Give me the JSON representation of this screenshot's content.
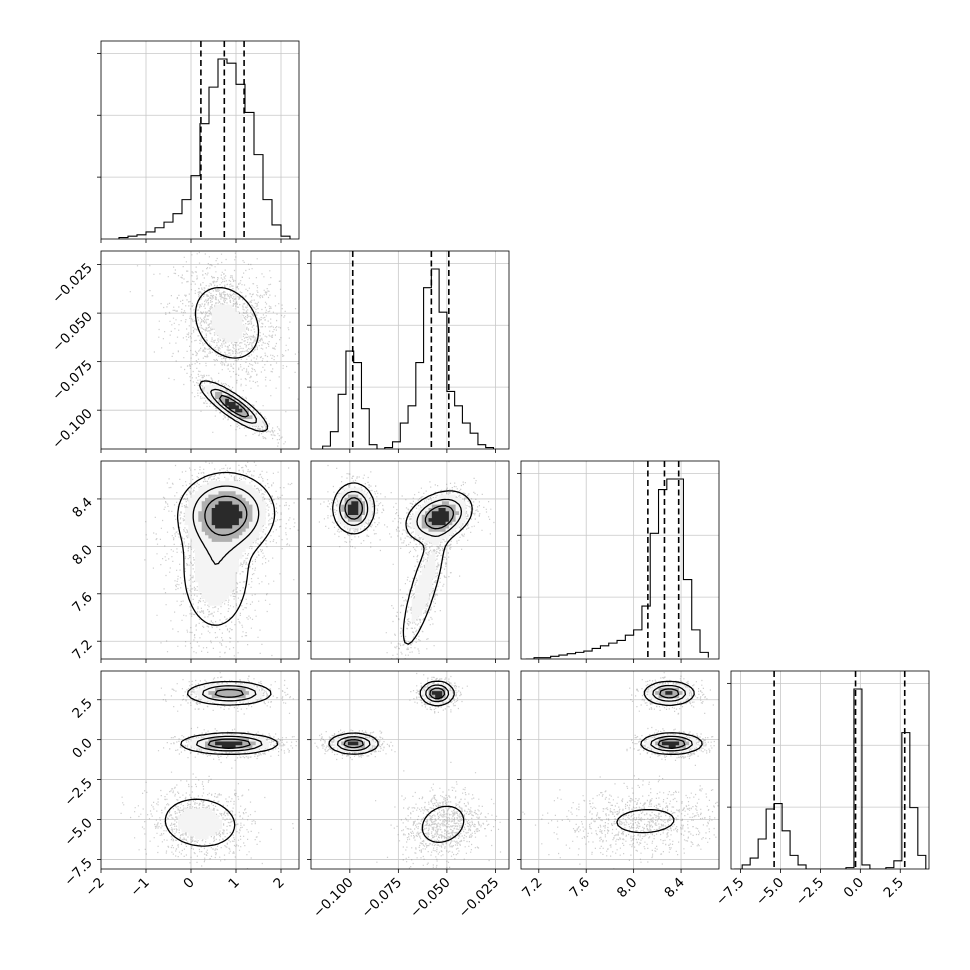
{
  "chart_data": {
    "type": "corner",
    "title": "",
    "n_params": 4,
    "grid": true,
    "params": [
      {
        "label": "",
        "range": [
          -2,
          2.4
        ],
        "ticks": [
          -2,
          -1,
          0,
          1,
          2
        ],
        "tick_labels": [
          "−2",
          "−1",
          "0",
          "1",
          "2"
        ]
      },
      {
        "label": "",
        "range": [
          -0.12,
          -0.018
        ],
        "ticks": [
          -0.1,
          -0.075,
          -0.05,
          -0.025
        ],
        "tick_labels": [
          "−0.100",
          "−0.075",
          "−0.050",
          "−0.025"
        ]
      },
      {
        "label": "",
        "range": [
          7.05,
          8.72
        ],
        "ticks": [
          7.2,
          7.6,
          8.0,
          8.4
        ],
        "tick_labels": [
          "7.2",
          "7.6",
          "8.0",
          "8.4"
        ]
      },
      {
        "label": "",
        "range": [
          -8.1,
          4.3
        ],
        "ticks": [
          -7.5,
          -5.0,
          -2.5,
          0.0,
          2.5
        ],
        "tick_labels": [
          "−7.5",
          "−5.0",
          "−2.5",
          "0.0",
          "2.5"
        ]
      }
    ],
    "histograms": [
      {
        "edges": [
          -1.6,
          -1.4,
          -1.2,
          -1.0,
          -0.8,
          -0.6,
          -0.4,
          -0.2,
          0.0,
          0.2,
          0.4,
          0.6,
          0.8,
          1.0,
          1.2,
          1.4,
          1.6,
          1.8,
          2.0,
          2.2
        ],
        "counts": [
          1,
          2,
          3,
          5,
          8,
          12,
          18,
          28,
          45,
          82,
          108,
          128,
          125,
          110,
          90,
          60,
          28,
          10,
          2
        ],
        "quantiles": [
          0.22,
          0.74,
          1.18
        ]
      },
      {
        "edges": [
          -0.114,
          -0.11,
          -0.106,
          -0.102,
          -0.098,
          -0.094,
          -0.09,
          -0.086,
          -0.082,
          -0.078,
          -0.074,
          -0.07,
          -0.066,
          -0.062,
          -0.058,
          -0.054,
          -0.05,
          -0.046,
          -0.042,
          -0.038,
          -0.034,
          -0.03,
          -0.026
        ],
        "counts": [
          2,
          12,
          38,
          68,
          60,
          28,
          3,
          0,
          1,
          5,
          18,
          30,
          60,
          112,
          125,
          95,
          40,
          30,
          18,
          11,
          3,
          1
        ],
        "quantiles": [
          -0.0985,
          -0.058,
          -0.049
        ]
      },
      {
        "edges": [
          7.09,
          7.16,
          7.23,
          7.3,
          7.37,
          7.44,
          7.51,
          7.58,
          7.65,
          7.72,
          7.79,
          7.86,
          7.93,
          8.0,
          8.07,
          8.14,
          8.21,
          8.28,
          8.35,
          8.42,
          8.49,
          8.56,
          8.63
        ],
        "counts": [
          0,
          1,
          1,
          2,
          3,
          4,
          5,
          6,
          8,
          10,
          12,
          14,
          18,
          22,
          40,
          95,
          128,
          136,
          136,
          60,
          22,
          5,
          1
        ],
        "quantiles": [
          8.12,
          8.26,
          8.38
        ]
      },
      {
        "edges": [
          -7.9,
          -7.4,
          -6.9,
          -6.4,
          -5.9,
          -5.4,
          -4.9,
          -4.4,
          -3.9,
          -3.4,
          -2.9,
          -2.4,
          -1.9,
          -1.4,
          -0.9,
          -0.4,
          0.1,
          0.6,
          1.1,
          1.6,
          2.1,
          2.6,
          3.1,
          3.6,
          4.1
        ],
        "counts": [
          0,
          3,
          8,
          22,
          44,
          48,
          28,
          10,
          3,
          0,
          0,
          0,
          0,
          0,
          1,
          132,
          3,
          0,
          0,
          1,
          6,
          100,
          45,
          10
        ],
        "quantiles": [
          -5.4,
          -0.3,
          2.78
        ]
      }
    ],
    "pairs": [
      {
        "x": 0,
        "y": 1,
        "clusters": [
          {
            "cx": 0.8,
            "cy": -0.055,
            "sx": 0.5,
            "sy": 0.013,
            "rho": -0.25,
            "w": 0.6
          },
          {
            "cx": 0.95,
            "cy": -0.098,
            "sx": 0.35,
            "sy": 0.006,
            "rho": -0.85,
            "w": 0.4
          }
        ]
      },
      {
        "x": 0,
        "y": 2,
        "clusters": [
          {
            "cx": 0.8,
            "cy": 8.28,
            "sx": 0.5,
            "sy": 0.16,
            "rho": 0.0,
            "w": 0.62
          },
          {
            "cx": 0.55,
            "cy": 7.8,
            "sx": 0.45,
            "sy": 0.3,
            "rho": 0.0,
            "w": 0.38
          }
        ]
      },
      {
        "x": 1,
        "y": 2,
        "clusters": [
          {
            "cx": -0.098,
            "cy": 8.32,
            "sx": 0.005,
            "sy": 0.1,
            "rho": 0.0,
            "w": 0.3
          },
          {
            "cx": -0.054,
            "cy": 8.25,
            "sx": 0.008,
            "sy": 0.1,
            "rho": 0.3,
            "w": 0.45
          },
          {
            "cx": -0.062,
            "cy": 7.65,
            "sx": 0.007,
            "sy": 0.32,
            "rho": 0.8,
            "w": 0.25
          }
        ]
      },
      {
        "x": 0,
        "y": 3,
        "clusters": [
          {
            "cx": 0.85,
            "cy": 2.9,
            "sx": 0.45,
            "sy": 0.35,
            "rho": 0.0,
            "w": 0.3
          },
          {
            "cx": 0.85,
            "cy": -0.25,
            "sx": 0.5,
            "sy": 0.3,
            "rho": 0.0,
            "w": 0.35
          },
          {
            "cx": 0.2,
            "cy": -5.2,
            "sx": 0.5,
            "sy": 0.95,
            "rho": -0.1,
            "w": 0.35
          }
        ]
      },
      {
        "x": 1,
        "y": 3,
        "clusters": [
          {
            "cx": -0.055,
            "cy": 2.9,
            "sx": 0.004,
            "sy": 0.35,
            "rho": 0.0,
            "w": 0.3
          },
          {
            "cx": -0.098,
            "cy": -0.25,
            "sx": 0.006,
            "sy": 0.3,
            "rho": 0.0,
            "w": 0.35
          },
          {
            "cx": -0.052,
            "cy": -5.3,
            "sx": 0.009,
            "sy": 0.95,
            "rho": 0.2,
            "w": 0.35
          }
        ]
      },
      {
        "x": 2,
        "y": 3,
        "clusters": [
          {
            "cx": 8.3,
            "cy": 2.9,
            "sx": 0.1,
            "sy": 0.35,
            "rho": 0.0,
            "w": 0.3
          },
          {
            "cx": 8.32,
            "cy": -0.25,
            "sx": 0.12,
            "sy": 0.3,
            "rho": 0.0,
            "w": 0.35
          },
          {
            "cx": 8.1,
            "cy": -5.1,
            "sx": 0.3,
            "sy": 0.9,
            "rho": 0.1,
            "w": 0.35
          }
        ]
      }
    ]
  }
}
